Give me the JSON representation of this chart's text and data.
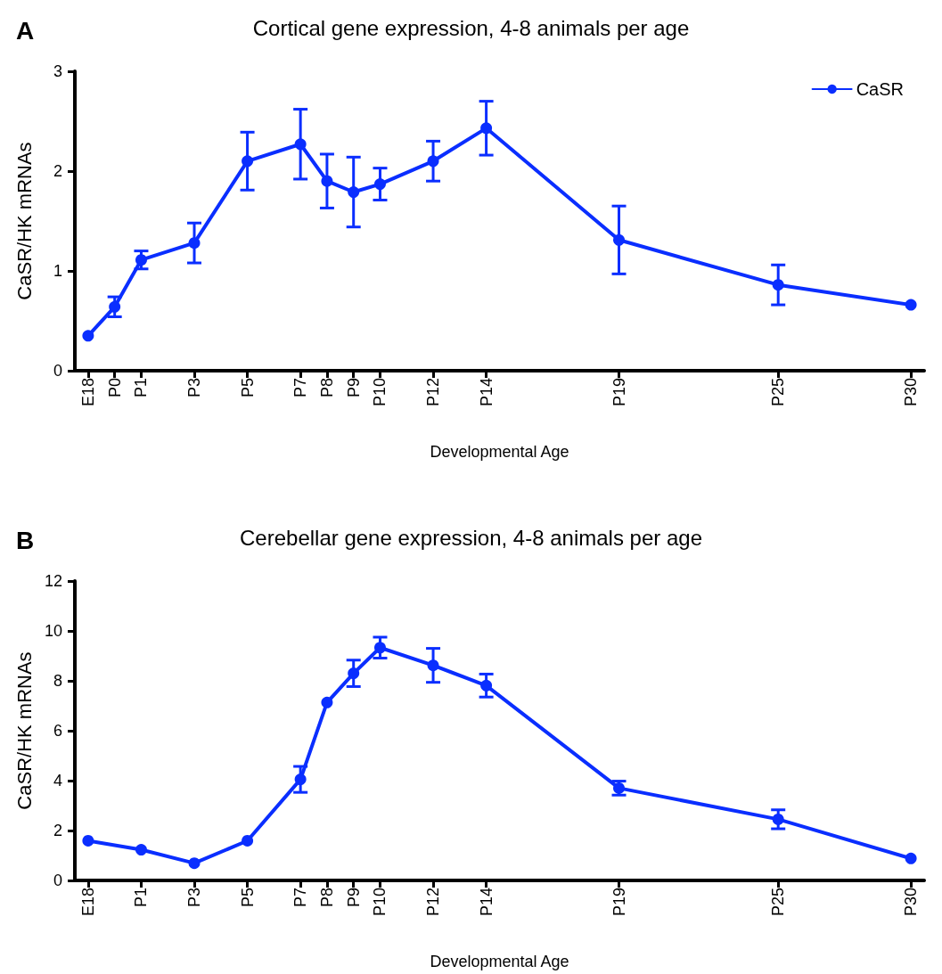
{
  "chart_data": [
    {
      "type": "line",
      "title": "Cortical gene expression, 4-8 animals per age",
      "xlabel": "Developmental Age",
      "ylabel": "CaSR/HK mRNAs",
      "annotations": [
        "A"
      ],
      "categories": [
        "E18",
        "P0",
        "P1",
        null,
        "P3",
        null,
        "P5",
        null,
        "P7",
        "P8",
        "P9",
        "P10",
        null,
        "P12",
        null,
        "P14",
        null,
        null,
        null,
        null,
        "P19",
        null,
        null,
        null,
        null,
        null,
        "P25",
        null,
        null,
        null,
        null,
        "P30"
      ],
      "ylim": [
        0,
        3
      ],
      "yticks": [
        0,
        1,
        2,
        3
      ],
      "series": [
        {
          "name": "CaSR",
          "color": "#0a2eff",
          "values": [
            0.35,
            0.64,
            1.11,
            null,
            1.28,
            null,
            2.1,
            null,
            2.27,
            1.9,
            1.79,
            1.87,
            null,
            2.1,
            null,
            2.43,
            null,
            null,
            null,
            null,
            1.31,
            null,
            null,
            null,
            null,
            null,
            0.86,
            null,
            null,
            null,
            null,
            0.66
          ],
          "errors": [
            null,
            0.1,
            0.09,
            null,
            0.2,
            null,
            0.29,
            null,
            0.35,
            0.27,
            0.35,
            0.16,
            null,
            0.2,
            null,
            0.27,
            null,
            null,
            null,
            null,
            0.34,
            null,
            null,
            null,
            null,
            null,
            0.2,
            null,
            null,
            null,
            null,
            null
          ]
        }
      ],
      "legend": "top right",
      "marker": "circle",
      "line_style": "solid",
      "grid": false
    },
    {
      "type": "line",
      "title": "Cerebellar gene expression, 4-8 animals per age",
      "xlabel": "Developmental Age",
      "ylabel": "CaSR/HK mRNAs",
      "annotations": [
        "B"
      ],
      "categories": [
        "E18",
        null,
        "P1",
        null,
        "P3",
        null,
        "P5",
        null,
        "P7",
        "P8",
        "P9",
        "P10",
        null,
        "P12",
        null,
        "P14",
        null,
        null,
        null,
        null,
        "P19",
        null,
        null,
        null,
        null,
        null,
        "P25",
        null,
        null,
        null,
        null,
        "P30"
      ],
      "ylim": [
        0,
        12
      ],
      "yticks": [
        0,
        2,
        4,
        6,
        8,
        10,
        12
      ],
      "series": [
        {
          "color": "#0a2eff",
          "values": [
            1.59,
            null,
            1.23,
            null,
            0.69,
            null,
            1.59,
            null,
            4.05,
            7.13,
            8.3,
            9.33,
            null,
            8.62,
            null,
            7.81,
            null,
            null,
            null,
            null,
            3.7,
            null,
            null,
            null,
            null,
            null,
            2.45,
            null,
            null,
            null,
            null,
            0.88
          ],
          "errors": [
            null,
            null,
            null,
            null,
            null,
            null,
            null,
            null,
            0.52,
            null,
            0.53,
            0.42,
            null,
            0.68,
            null,
            0.46,
            null,
            null,
            null,
            null,
            0.28,
            null,
            null,
            null,
            null,
            null,
            0.38,
            null,
            null,
            null,
            null,
            null
          ]
        }
      ],
      "legend": false,
      "marker": "circle",
      "line_style": "solid",
      "grid": false
    }
  ]
}
